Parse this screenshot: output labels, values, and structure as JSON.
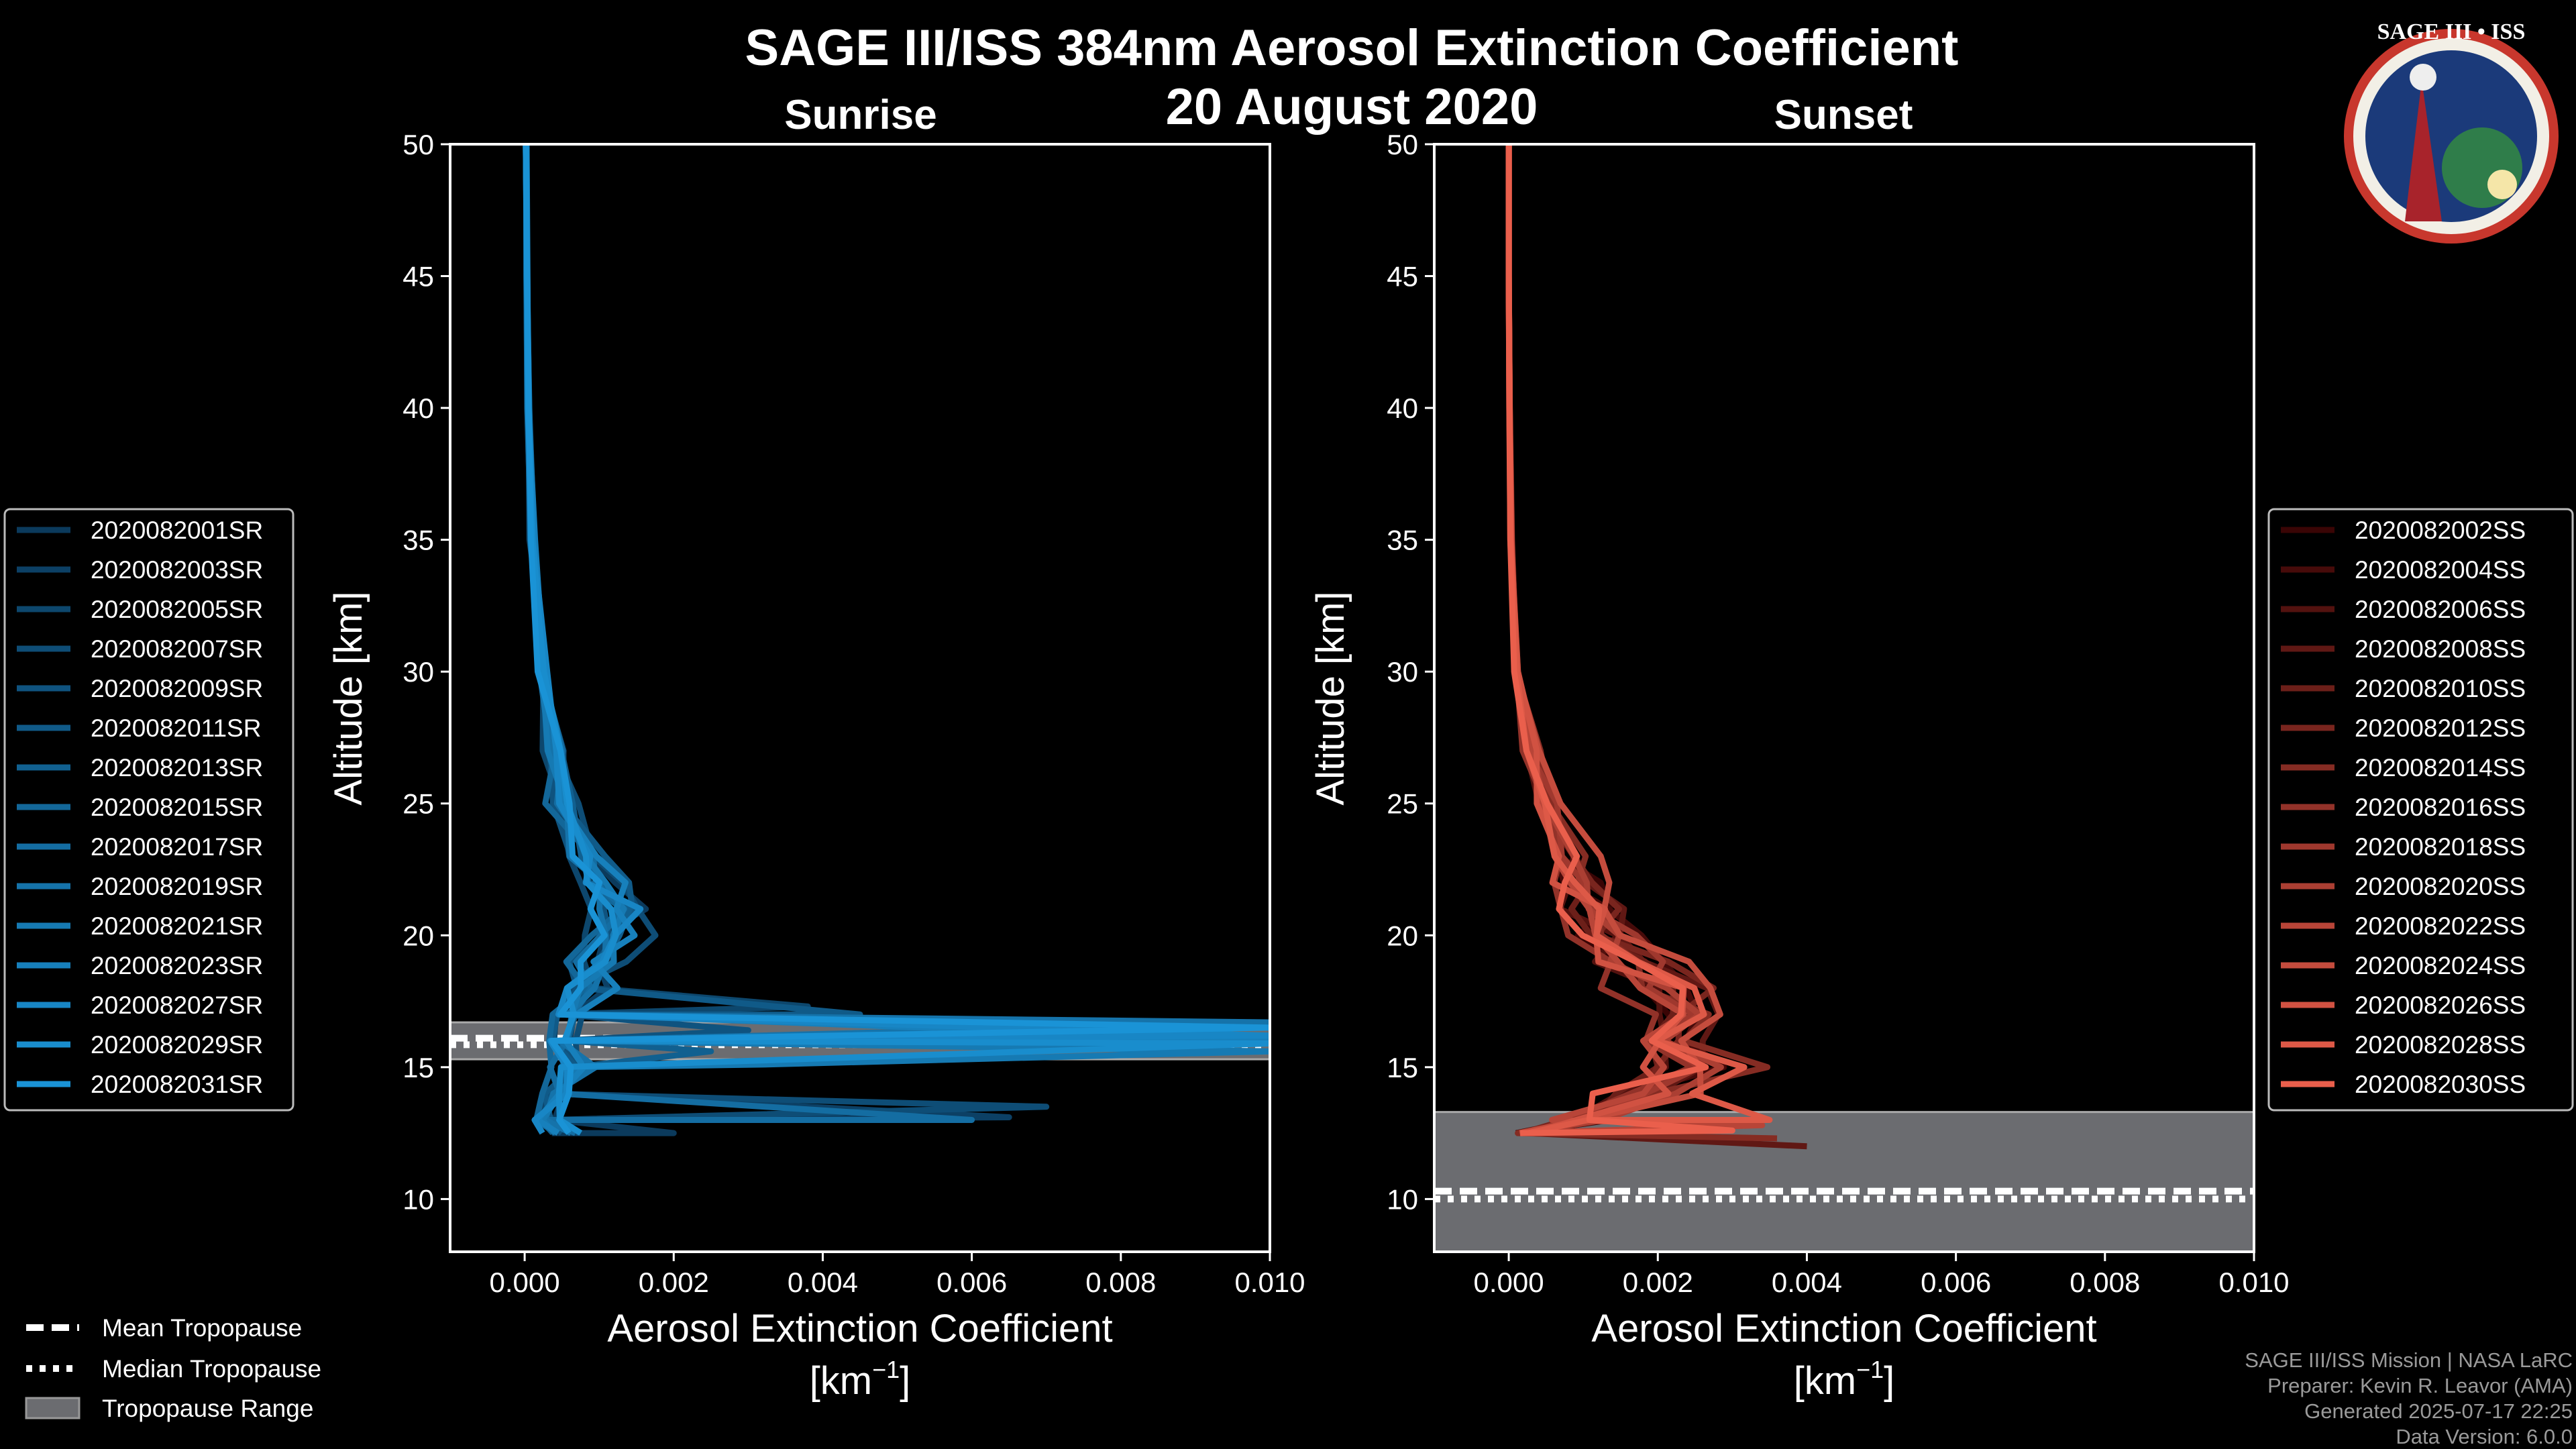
{
  "title": "SAGE III/ISS 384nm Aerosol Extinction Coefficient",
  "date": "20 August 2020",
  "logo": {
    "text": "SAGE III • ISS"
  },
  "credits": [
    "SAGE III/ISS Mission | NASA LaRC",
    "Preparer: Kevin R. Leavor (AMA)",
    "Generated 2025-07-17 22:25",
    "Data Version: 6.0.0"
  ],
  "tropo_legend": {
    "mean": "Mean Tropopause",
    "median": "Median Tropopause",
    "range": "Tropopause Range"
  },
  "chart_data": [
    {
      "type": "line",
      "title": "Sunrise",
      "xlabel": "Aerosol Extinction Coefficient",
      "xunit": "[km",
      "xunit_sup": "−1",
      "xunit_end": "]",
      "ylabel": "Altitude [km]",
      "xlim": [
        -0.001,
        0.01
      ],
      "ylim": [
        8,
        50
      ],
      "xticks": [
        "0.000",
        "0.002",
        "0.004",
        "0.006",
        "0.008",
        "0.010"
      ],
      "yticks": [
        "10",
        "15",
        "20",
        "25",
        "30",
        "35",
        "40",
        "45",
        "50"
      ],
      "legend_placement": "outside-left",
      "tropopause": {
        "mean": 16.1,
        "median": 15.85,
        "range": [
          15.3,
          16.7
        ]
      },
      "altitude_km": [
        12.5,
        13,
        14,
        15,
        16,
        17,
        18,
        19,
        20,
        21,
        22,
        23,
        25,
        27,
        30,
        35,
        40,
        45,
        50
      ],
      "base_profile": [
        0.0005,
        0.0003,
        0.0004,
        0.0006,
        0.0004,
        0.0006,
        0.0008,
        0.0009,
        0.0011,
        0.0012,
        0.001,
        0.0008,
        0.0005,
        0.0004,
        0.00025,
        0.0001,
        5e-05,
        3e-05,
        2e-05
      ],
      "color_start": "#0b3a5c",
      "color_end": "#1a93d6",
      "series": [
        {
          "name": "2020082001SR",
          "scale": 1.0,
          "spikes": [
            [
              12.5,
              0.002
            ]
          ]
        },
        {
          "name": "2020082003SR",
          "scale": 1.1,
          "spikes": [
            [
              13.1,
              0.0065
            ]
          ]
        },
        {
          "name": "2020082005SR",
          "scale": 0.9,
          "spikes": [
            [
              17.3,
              0.0038
            ]
          ]
        },
        {
          "name": "2020082007SR",
          "scale": 1.2,
          "spikes": [
            [
              13.5,
              0.007
            ]
          ]
        },
        {
          "name": "2020082009SR",
          "scale": 0.95,
          "spikes": [
            [
              16.4,
              0.003
            ]
          ]
        },
        {
          "name": "2020082011SR",
          "scale": 1.05,
          "spikes": [
            [
              17.0,
              0.0045
            ]
          ]
        },
        {
          "name": "2020082013SR",
          "scale": 1.15,
          "spikes": [
            [
              15.6,
              0.0025
            ]
          ]
        },
        {
          "name": "2020082015SR",
          "scale": 0.85,
          "spikes": []
        },
        {
          "name": "2020082017SR",
          "scale": 1.0,
          "spikes": [
            [
              13.0,
              0.006
            ]
          ]
        },
        {
          "name": "2020082019SR",
          "scale": 1.1,
          "spikes": [
            [
              16.7,
              0.01
            ]
          ]
        },
        {
          "name": "2020082021SR",
          "scale": 0.9,
          "spikes": [
            [
              15.1,
              0.0032
            ],
            [
              15.6,
              0.01
            ]
          ]
        },
        {
          "name": "2020082023SR",
          "scale": 1.2,
          "spikes": [
            [
              16.0,
              0.01
            ]
          ]
        },
        {
          "name": "2020082027SR",
          "scale": 1.0,
          "spikes": [
            [
              16.2,
              0.01
            ]
          ]
        },
        {
          "name": "2020082029SR",
          "scale": 1.05,
          "spikes": [
            [
              15.9,
              0.01
            ]
          ]
        },
        {
          "name": "2020082031SR",
          "scale": 0.95,
          "spikes": [
            [
              16.5,
              0.01
            ]
          ]
        }
      ]
    },
    {
      "type": "line",
      "title": "Sunset",
      "xlabel": "Aerosol Extinction Coefficient",
      "xunit": "[km",
      "xunit_sup": "−1",
      "xunit_end": "]",
      "ylabel": "Altitude [km]",
      "xlim": [
        -0.001,
        0.01
      ],
      "ylim": [
        8,
        50
      ],
      "xticks": [
        "0.000",
        "0.002",
        "0.004",
        "0.006",
        "0.008",
        "0.010"
      ],
      "yticks": [
        "10",
        "15",
        "20",
        "25",
        "30",
        "35",
        "40",
        "45",
        "50"
      ],
      "legend_placement": "outside-right",
      "tropopause": {
        "mean": 10.3,
        "median": 10.0,
        "range": [
          8,
          13.3
        ]
      },
      "altitude_km": [
        12.5,
        13,
        14,
        15,
        16,
        17,
        18,
        19,
        20,
        21,
        22,
        23,
        25,
        27,
        30,
        35,
        40,
        45,
        50
      ],
      "base_profile": [
        0.0002,
        0.001,
        0.0018,
        0.0025,
        0.0022,
        0.002,
        0.002,
        0.0017,
        0.0013,
        0.0011,
        0.0009,
        0.0008,
        0.0005,
        0.0003,
        0.0001,
        3e-05,
        1e-05,
        0.0,
        0.0
      ],
      "color_start": "#3a0505",
      "color_end": "#ea5f4c",
      "series": [
        {
          "name": "2020082002SS",
          "scale": 1.0,
          "spikes": []
        },
        {
          "name": "2020082004SS",
          "scale": 1.1,
          "spikes": []
        },
        {
          "name": "2020082006SS",
          "scale": 0.9,
          "spikes": []
        },
        {
          "name": "2020082008SS",
          "scale": 1.2,
          "spikes": [
            [
              12.0,
              0.004
            ]
          ]
        },
        {
          "name": "2020082010SS",
          "scale": 0.95,
          "spikes": []
        },
        {
          "name": "2020082012SS",
          "scale": 1.05,
          "spikes": []
        },
        {
          "name": "2020082014SS",
          "scale": 1.15,
          "spikes": [
            [
              12.3,
              0.0036
            ]
          ]
        },
        {
          "name": "2020082016SS",
          "scale": 0.85,
          "spikes": []
        },
        {
          "name": "2020082018SS",
          "scale": 1.0,
          "spikes": []
        },
        {
          "name": "2020082020SS",
          "scale": 1.1,
          "spikes": []
        },
        {
          "name": "2020082022SS",
          "scale": 0.9,
          "spikes": [
            [
              12.8,
              0.0034
            ]
          ]
        },
        {
          "name": "2020082024SS",
          "scale": 1.2,
          "spikes": []
        },
        {
          "name": "2020082026SS",
          "scale": 1.0,
          "spikes": []
        },
        {
          "name": "2020082028SS",
          "scale": 1.05,
          "spikes": [
            [
              13.0,
              0.0035
            ]
          ]
        },
        {
          "name": "2020082030SS",
          "scale": 0.95,
          "spikes": [
            [
              12.6,
              0.003
            ]
          ]
        }
      ]
    }
  ]
}
